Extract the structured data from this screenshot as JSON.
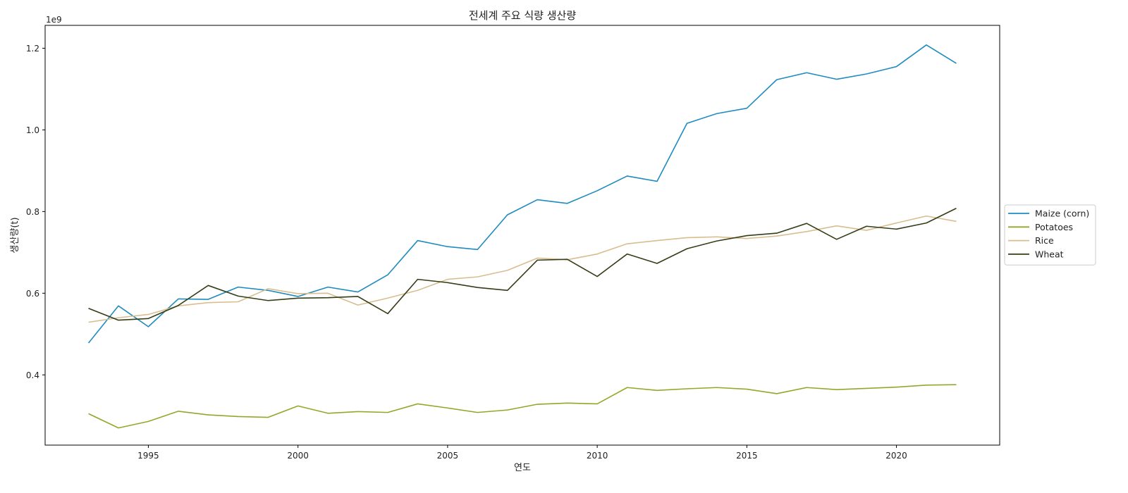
{
  "chart_data": {
    "type": "line",
    "title": "전세계 주요 식량 생산량",
    "xlabel": "연도",
    "ylabel": "생산량(t)",
    "y_offset_label": "1e9",
    "x": [
      1993,
      1994,
      1995,
      1996,
      1997,
      1998,
      1999,
      2000,
      2001,
      2002,
      2003,
      2004,
      2005,
      2006,
      2007,
      2008,
      2009,
      2010,
      2011,
      2012,
      2013,
      2014,
      2015,
      2016,
      2017,
      2018,
      2019,
      2020,
      2021,
      2022
    ],
    "xlim": [
      1991.55,
      2023.45
    ],
    "ylim": [
      0.228,
      1.256
    ],
    "xticks": [
      1995,
      2000,
      2005,
      2010,
      2015,
      2020
    ],
    "xtick_labels": [
      "1995",
      "2000",
      "2005",
      "2010",
      "2015",
      "2020"
    ],
    "yticks": [
      0.4,
      0.6,
      0.8,
      1.0,
      1.2
    ],
    "ytick_labels": [
      "0.4",
      "0.6",
      "0.8",
      "1.0",
      "1.2"
    ],
    "grid": false,
    "legend_position": "outside-right",
    "series": [
      {
        "name": "Maize (corn)",
        "color": "#1f8bbf",
        "values": [
          0.478,
          0.569,
          0.518,
          0.586,
          0.585,
          0.615,
          0.607,
          0.592,
          0.615,
          0.603,
          0.645,
          0.729,
          0.714,
          0.707,
          0.792,
          0.829,
          0.82,
          0.851,
          0.887,
          0.874,
          1.016,
          1.04,
          1.053,
          1.123,
          1.14,
          1.124,
          1.137,
          1.155,
          1.208,
          1.163
        ]
      },
      {
        "name": "Potatoes",
        "color": "#93a829",
        "values": [
          0.305,
          0.27,
          0.286,
          0.311,
          0.302,
          0.298,
          0.296,
          0.324,
          0.306,
          0.31,
          0.308,
          0.329,
          0.319,
          0.308,
          0.314,
          0.328,
          0.331,
          0.329,
          0.369,
          0.362,
          0.366,
          0.369,
          0.365,
          0.354,
          0.369,
          0.364,
          0.367,
          0.37,
          0.375,
          0.376
        ]
      },
      {
        "name": "Rice",
        "color": "#d9bd8f",
        "values": [
          0.529,
          0.54,
          0.548,
          0.569,
          0.577,
          0.579,
          0.611,
          0.599,
          0.6,
          0.571,
          0.588,
          0.607,
          0.634,
          0.64,
          0.656,
          0.686,
          0.682,
          0.696,
          0.721,
          0.729,
          0.736,
          0.738,
          0.734,
          0.74,
          0.751,
          0.765,
          0.754,
          0.772,
          0.789,
          0.776
        ]
      },
      {
        "name": "Wheat",
        "color": "#343e16",
        "values": [
          0.563,
          0.534,
          0.538,
          0.57,
          0.619,
          0.593,
          0.582,
          0.588,
          0.589,
          0.592,
          0.55,
          0.634,
          0.626,
          0.614,
          0.607,
          0.681,
          0.683,
          0.641,
          0.696,
          0.673,
          0.709,
          0.728,
          0.741,
          0.747,
          0.771,
          0.732,
          0.764,
          0.757,
          0.772,
          0.808
        ]
      }
    ]
  }
}
